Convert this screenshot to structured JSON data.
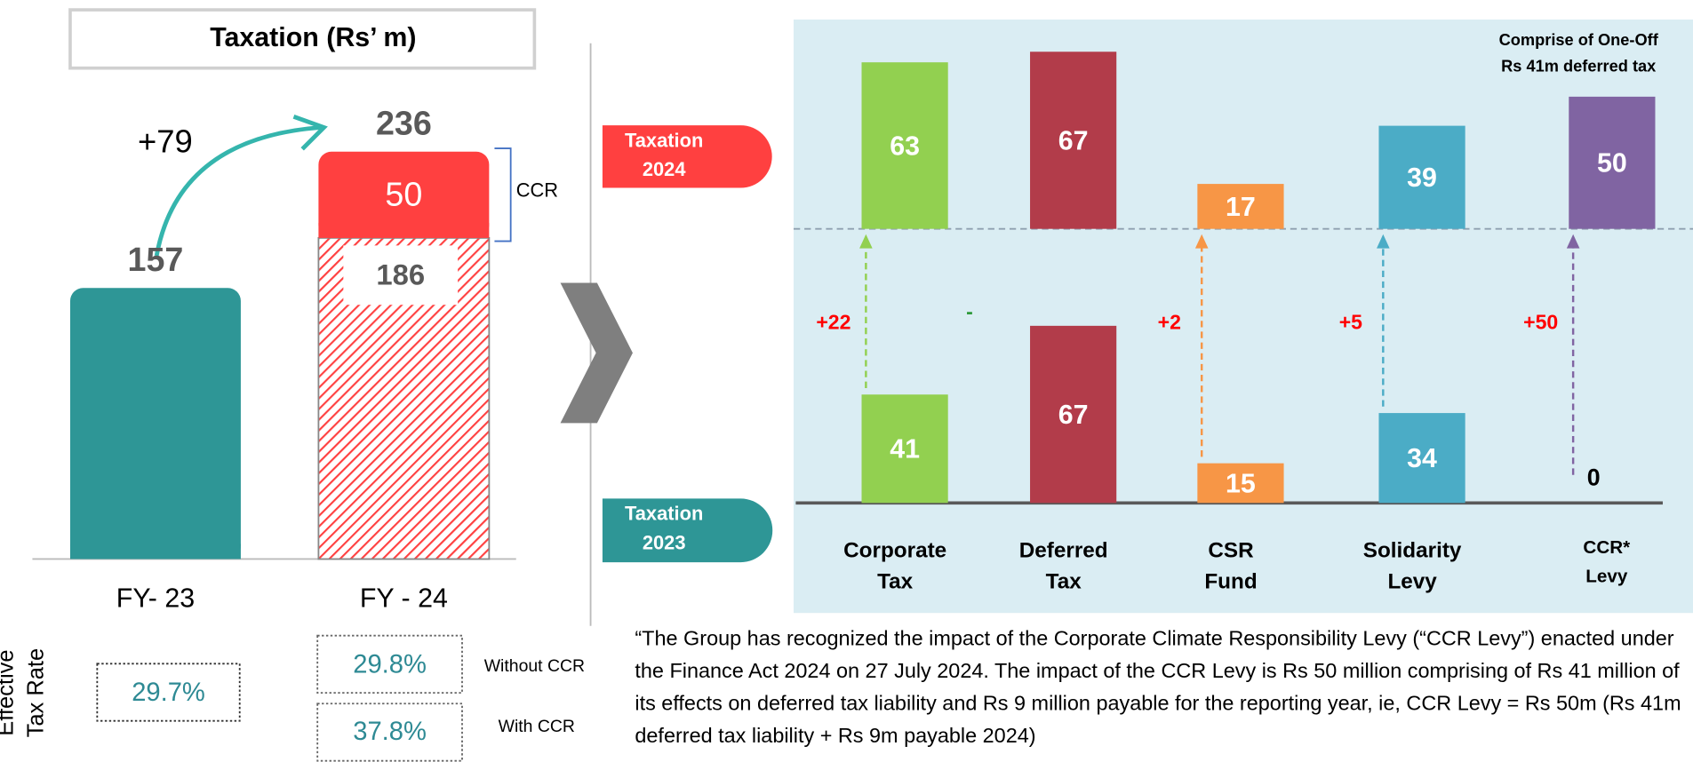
{
  "chart_data": [
    {
      "type": "stacked_bar",
      "title": "Taxation (Rs’ m)",
      "categories": [
        "FY- 23",
        "FY - 24"
      ],
      "series": [
        {
          "colors": [
            "#2e9696",
            "#ff4040"
          ],
          "hatched": [
            false,
            true
          ],
          "values": [
            157,
            186
          ]
        },
        {
          "name": "CCR",
          "color": "#ff4040",
          "values": [
            null,
            50
          ]
        }
      ],
      "totals": [
        157,
        236
      ],
      "change_label": "+79"
    },
    {
      "type": "bar_comparison",
      "categories": [
        [
          "Corporate",
          "Tax"
        ],
        [
          "Deferred",
          "Tax"
        ],
        [
          "CSR",
          "Fund"
        ],
        [
          "Solidarity",
          "Levy"
        ],
        [
          "CCR*",
          "Levy"
        ]
      ],
      "colors": [
        "#92d050",
        "#b23c4a",
        "#f79646",
        "#4bacc6",
        "#8064a2"
      ],
      "series": [
        {
          "name": "Taxation 2023",
          "color": "#2e9696",
          "values": [
            41,
            67,
            15,
            34,
            0
          ]
        },
        {
          "name": "Taxation 2024",
          "color": "#ff4040",
          "values": [
            63,
            67,
            17,
            39,
            50
          ]
        }
      ],
      "change_labels": [
        "+22",
        "-",
        "+2",
        "+5",
        "+50"
      ],
      "annotation": [
        "Comprise of  One-Off",
        "Rs 41m deferred tax"
      ]
    }
  ],
  "effective_tax_rate": {
    "label": [
      "Effective",
      "Tax Rate"
    ],
    "fy23": "29.7%",
    "fy24": [
      {
        "rate": "29.8%",
        "note": "Without CCR"
      },
      {
        "rate": "37.8%",
        "note": "With CCR"
      }
    ]
  },
  "quote": "“The Group has recognized the impact of the Corporate Climate Responsibility Levy (“CCR Levy”) enacted under the Finance Act 2024 on 27 July 2024. The impact of the CCR Levy is Rs 50 million comprising of Rs 41 million of its effects on deferred tax liability and Rs 9 million payable for the reporting year, ie, CCR Levy = Rs 50m (Rs 41m deferred tax liability + Rs 9m payable 2024)"
}
